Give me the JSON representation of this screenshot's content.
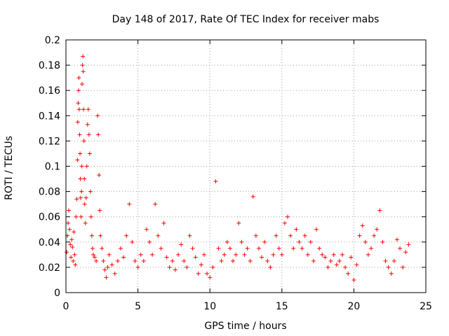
{
  "chart_data": {
    "type": "scatter",
    "title": "Day 148 of 2017, Rate Of TEC Index for receiver mabs",
    "xlabel": "GPS time / hours",
    "ylabel": "ROTI / TECUs",
    "xlim": [
      0,
      25
    ],
    "ylim": [
      0,
      0.2
    ],
    "grid": true,
    "marker": "+",
    "color": "#ff0000",
    "x_ticks": [
      {
        "value": 0,
        "label": "0"
      },
      {
        "value": 5,
        "label": "5"
      },
      {
        "value": 10,
        "label": "10"
      },
      {
        "value": 15,
        "label": "15"
      },
      {
        "value": 20,
        "label": "20"
      },
      {
        "value": 25,
        "label": "25"
      }
    ],
    "y_ticks": [
      {
        "value": 0,
        "label": "0"
      },
      {
        "value": 0.02,
        "label": "0.02"
      },
      {
        "value": 0.04,
        "label": "0.04"
      },
      {
        "value": 0.06,
        "label": "0.06"
      },
      {
        "value": 0.08,
        "label": "0.08"
      },
      {
        "value": 0.1,
        "label": "0.1"
      },
      {
        "value": 0.12,
        "label": "0.12"
      },
      {
        "value": 0.14,
        "label": "0.14"
      },
      {
        "value": 0.16,
        "label": "0.16"
      },
      {
        "value": 0.18,
        "label": "0.18"
      },
      {
        "value": 0.2,
        "label": "0.2"
      }
    ],
    "series": [
      {
        "name": "ROTI",
        "points": [
          [
            0.05,
            0.032
          ],
          [
            0.1,
            0.045
          ],
          [
            0.15,
            0.055
          ],
          [
            0.2,
            0.065
          ],
          [
            0.25,
            0.05
          ],
          [
            0.3,
            0.038
          ],
          [
            0.35,
            0.028
          ],
          [
            0.4,
            0.042
          ],
          [
            0.45,
            0.036
          ],
          [
            0.5,
            0.025
          ],
          [
            0.55,
            0.048
          ],
          [
            0.6,
            0.03
          ],
          [
            0.65,
            0.022
          ],
          [
            0.7,
            0.06
          ],
          [
            0.75,
            0.074
          ],
          [
            0.8,
            0.105
          ],
          [
            0.82,
            0.135
          ],
          [
            0.85,
            0.15
          ],
          [
            0.88,
            0.16
          ],
          [
            0.9,
            0.17
          ],
          [
            0.92,
            0.145
          ],
          [
            0.95,
            0.125
          ],
          [
            0.98,
            0.11
          ],
          [
            1.0,
            0.09
          ],
          [
            1.02,
            0.075
          ],
          [
            1.05,
            0.06
          ],
          [
            1.08,
            0.08
          ],
          [
            1.1,
            0.1
          ],
          [
            1.12,
            0.165
          ],
          [
            1.15,
            0.18
          ],
          [
            1.18,
            0.187
          ],
          [
            1.2,
            0.175
          ],
          [
            1.22,
            0.145
          ],
          [
            1.25,
            0.12
          ],
          [
            1.28,
            0.09
          ],
          [
            1.3,
            0.07
          ],
          [
            1.35,
            0.055
          ],
          [
            1.4,
            0.075
          ],
          [
            1.45,
            0.1
          ],
          [
            1.5,
            0.133
          ],
          [
            1.55,
            0.145
          ],
          [
            1.6,
            0.125
          ],
          [
            1.65,
            0.11
          ],
          [
            1.7,
            0.08
          ],
          [
            1.75,
            0.06
          ],
          [
            1.8,
            0.045
          ],
          [
            1.85,
            0.035
          ],
          [
            1.9,
            0.03
          ],
          [
            2.0,
            0.028
          ],
          [
            2.1,
            0.025
          ],
          [
            2.2,
            0.14
          ],
          [
            2.25,
            0.125
          ],
          [
            2.3,
            0.093
          ],
          [
            2.35,
            0.065
          ],
          [
            2.4,
            0.045
          ],
          [
            2.5,
            0.035
          ],
          [
            2.6,
            0.025
          ],
          [
            2.7,
            0.018
          ],
          [
            2.8,
            0.012
          ],
          [
            2.9,
            0.02
          ],
          [
            3.0,
            0.03
          ],
          [
            3.2,
            0.022
          ],
          [
            3.4,
            0.015
          ],
          [
            3.6,
            0.025
          ],
          [
            3.8,
            0.035
          ],
          [
            4.0,
            0.028
          ],
          [
            4.2,
            0.045
          ],
          [
            4.4,
            0.07
          ],
          [
            4.6,
            0.04
          ],
          [
            4.8,
            0.025
          ],
          [
            5.0,
            0.02
          ],
          [
            5.2,
            0.03
          ],
          [
            5.4,
            0.025
          ],
          [
            5.6,
            0.05
          ],
          [
            5.8,
            0.04
          ],
          [
            6.0,
            0.03
          ],
          [
            6.2,
            0.07
          ],
          [
            6.4,
            0.045
          ],
          [
            6.6,
            0.035
          ],
          [
            6.8,
            0.055
          ],
          [
            7.0,
            0.028
          ],
          [
            7.2,
            0.02
          ],
          [
            7.4,
            0.025
          ],
          [
            7.6,
            0.018
          ],
          [
            7.8,
            0.03
          ],
          [
            8.0,
            0.038
          ],
          [
            8.2,
            0.025
          ],
          [
            8.4,
            0.02
          ],
          [
            8.6,
            0.045
          ],
          [
            8.8,
            0.035
          ],
          [
            9.0,
            0.028
          ],
          [
            9.2,
            0.015
          ],
          [
            9.4,
            0.022
          ],
          [
            9.6,
            0.03
          ],
          [
            9.8,
            0.015
          ],
          [
            10.0,
            0.012
          ],
          [
            10.2,
            0.02
          ],
          [
            10.4,
            0.088
          ],
          [
            10.6,
            0.035
          ],
          [
            10.8,
            0.025
          ],
          [
            11.0,
            0.03
          ],
          [
            11.2,
            0.04
          ],
          [
            11.4,
            0.035
          ],
          [
            11.6,
            0.025
          ],
          [
            11.8,
            0.03
          ],
          [
            12.0,
            0.055
          ],
          [
            12.2,
            0.04
          ],
          [
            12.4,
            0.03
          ],
          [
            12.6,
            0.035
          ],
          [
            12.8,
            0.025
          ],
          [
            13.0,
            0.076
          ],
          [
            13.2,
            0.045
          ],
          [
            13.4,
            0.035
          ],
          [
            13.6,
            0.028
          ],
          [
            13.8,
            0.04
          ],
          [
            14.0,
            0.025
          ],
          [
            14.2,
            0.02
          ],
          [
            14.4,
            0.03
          ],
          [
            14.6,
            0.045
          ],
          [
            14.8,
            0.035
          ],
          [
            15.0,
            0.03
          ],
          [
            15.2,
            0.055
          ],
          [
            15.4,
            0.06
          ],
          [
            15.6,
            0.045
          ],
          [
            15.8,
            0.035
          ],
          [
            16.0,
            0.05
          ],
          [
            16.2,
            0.04
          ],
          [
            16.4,
            0.035
          ],
          [
            16.6,
            0.045
          ],
          [
            16.8,
            0.03
          ],
          [
            17.0,
            0.04
          ],
          [
            17.2,
            0.025
          ],
          [
            17.4,
            0.05
          ],
          [
            17.6,
            0.035
          ],
          [
            17.8,
            0.03
          ],
          [
            18.0,
            0.028
          ],
          [
            18.2,
            0.02
          ],
          [
            18.4,
            0.025
          ],
          [
            18.6,
            0.03
          ],
          [
            18.8,
            0.022
          ],
          [
            19.0,
            0.025
          ],
          [
            19.2,
            0.03
          ],
          [
            19.4,
            0.02
          ],
          [
            19.6,
            0.015
          ],
          [
            19.8,
            0.028
          ],
          [
            20.0,
            0.01
          ],
          [
            20.2,
            0.022
          ],
          [
            20.4,
            0.045
          ],
          [
            20.6,
            0.053
          ],
          [
            20.8,
            0.04
          ],
          [
            21.0,
            0.03
          ],
          [
            21.2,
            0.035
          ],
          [
            21.4,
            0.045
          ],
          [
            21.6,
            0.05
          ],
          [
            21.8,
            0.065
          ],
          [
            22.0,
            0.04
          ],
          [
            22.2,
            0.025
          ],
          [
            22.4,
            0.02
          ],
          [
            22.6,
            0.015
          ],
          [
            22.8,
            0.025
          ],
          [
            23.0,
            0.042
          ],
          [
            23.2,
            0.035
          ],
          [
            23.4,
            0.02
          ],
          [
            23.6,
            0.032
          ],
          [
            23.8,
            0.038
          ]
        ]
      }
    ]
  }
}
